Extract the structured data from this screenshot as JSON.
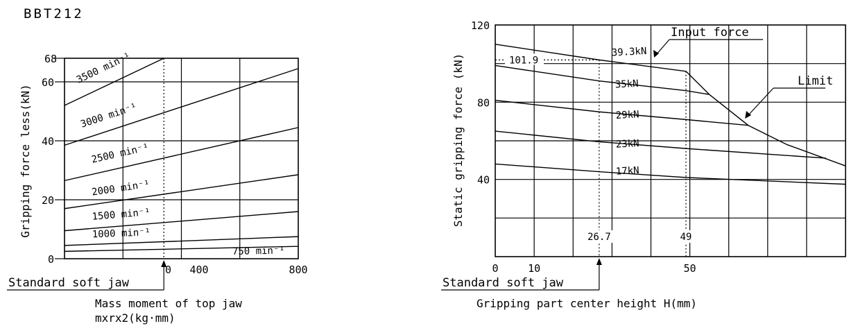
{
  "model": "BBT212",
  "chart_data": [
    {
      "type": "line",
      "title": "",
      "ylabel": "Gripping force less(kN)",
      "xlabel": "Mass moment of top jaw",
      "xlabel2": "mxrx2(kg·mm)",
      "xlim": [
        0,
        800
      ],
      "ylim": [
        0,
        68
      ],
      "x_ticks": [
        "400",
        "800"
      ],
      "y_ticks": [
        "0",
        "20",
        "40",
        "60",
        "68"
      ],
      "grid": true,
      "series": [
        {
          "name": "3500 min⁻¹",
          "x": [
            0,
            340
          ],
          "y": [
            52,
            68
          ]
        },
        {
          "name": "3000 min⁻¹",
          "x": [
            0,
            800
          ],
          "y": [
            38.5,
            64.5
          ]
        },
        {
          "name": "2500 min⁻¹",
          "x": [
            0,
            800
          ],
          "y": [
            26.5,
            44.5
          ]
        },
        {
          "name": "2000 min⁻¹",
          "x": [
            0,
            800
          ],
          "y": [
            17,
            28.5
          ]
        },
        {
          "name": "1500 min⁻¹",
          "x": [
            0,
            800
          ],
          "y": [
            9.5,
            16
          ]
        },
        {
          "name": "1000 min⁻¹",
          "x": [
            0,
            800
          ],
          "y": [
            4.5,
            7.5
          ]
        },
        {
          "name": "750 min⁻¹",
          "x": [
            0,
            800
          ],
          "y": [
            2.5,
            4.2
          ]
        }
      ],
      "reference": {
        "x": 340,
        "label": "Standard soft jaw",
        "tick_label": "0"
      }
    },
    {
      "type": "line",
      "title": "",
      "ylabel": "Static gripping force (kN)",
      "xlabel": "Gripping part center height H(mm)",
      "xlim": [
        0,
        90
      ],
      "ylim": [
        0,
        120
      ],
      "x_ticks": [
        "0",
        "10",
        "50"
      ],
      "y_ticks": [
        "40",
        "80",
        "120"
      ],
      "grid": true,
      "series": [
        {
          "name": "39.3kN",
          "x": [
            0,
            26.7,
            49
          ],
          "y": [
            110,
            101.9,
            96
          ]
        },
        {
          "name": "35kN",
          "x": [
            0,
            26.7,
            49,
            55
          ],
          "y": [
            99,
            91,
            86,
            84
          ]
        },
        {
          "name": "29kN",
          "x": [
            0,
            26.7,
            49,
            65
          ],
          "y": [
            81,
            75,
            71,
            68
          ]
        },
        {
          "name": "23kN",
          "x": [
            0,
            26.7,
            49,
            85
          ],
          "y": [
            65,
            59.5,
            56,
            51
          ]
        },
        {
          "name": "17kN",
          "x": [
            0,
            26.7,
            49,
            90
          ],
          "y": [
            48,
            44,
            41,
            37.5
          ]
        },
        {
          "name": "Limit",
          "x": [
            49,
            55,
            65,
            75,
            90
          ],
          "y": [
            96,
            84,
            68,
            58,
            47
          ]
        }
      ],
      "annotations": {
        "input_force": "Input force",
        "limit": "Limit",
        "value_101_9": "101.9",
        "h_26_7": "26.7",
        "h_49": "49"
      },
      "reference": {
        "x": 26.7,
        "label": "Standard soft jaw"
      }
    }
  ]
}
